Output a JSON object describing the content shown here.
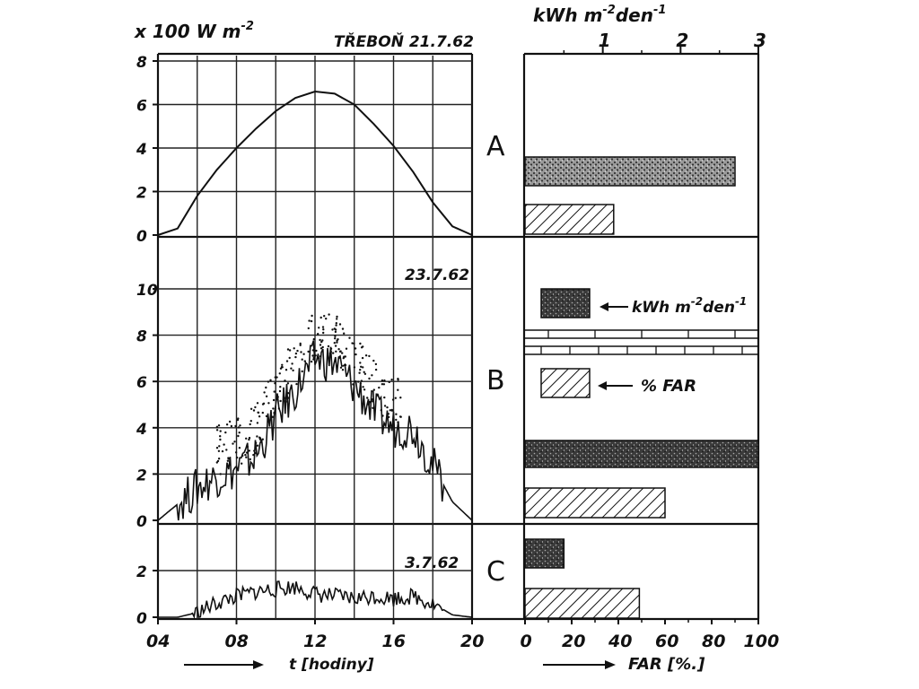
{
  "header": {
    "y_unit": "x 100 W m",
    "y_unit_sup": "-2",
    "location_date": "TŘEBOŇ  21.7.62",
    "energy_unit": "kWh m",
    "energy_unit_sup1": "-2",
    "energy_unit_mid": "den",
    "energy_unit_sup2": "-1"
  },
  "x_axis": {
    "label": "t  [hodiny]",
    "ticks": [
      "04",
      "08",
      "12",
      "16",
      "20"
    ]
  },
  "bar_axis": {
    "label": "FAR  [%.]",
    "ticks": [
      "0",
      "20",
      "40",
      "60",
      "80",
      "100"
    ],
    "top_ticks": [
      "1",
      "2",
      "3"
    ]
  },
  "legend": {
    "energy_label": "kWh m",
    "energy_sup1": "-2",
    "energy_mid": "den",
    "energy_sup2": "-1",
    "far_label": "% FAR"
  },
  "colors": {
    "ink": "#111111",
    "paper": "#ffffff"
  },
  "chart_data": [
    {
      "type": "line",
      "panel": "A",
      "date": "21.7.62",
      "x": [
        4,
        5,
        6,
        7,
        8,
        9,
        10,
        11,
        12,
        13,
        14,
        15,
        16,
        17,
        18,
        19,
        20
      ],
      "y": [
        0,
        0.3,
        1.8,
        3.0,
        4.0,
        4.9,
        5.7,
        6.3,
        6.6,
        6.5,
        6.0,
        5.1,
        4.1,
        2.9,
        1.5,
        0.4,
        0
      ],
      "yticks": [
        "0",
        "2",
        "4",
        "6",
        "8"
      ],
      "ylim": [
        0,
        8
      ],
      "xlim": [
        4,
        20
      ],
      "energy_kwh": 2.7,
      "far_percent": 38
    },
    {
      "type": "line",
      "panel": "B",
      "date": "23.7.62",
      "x": [
        4,
        5,
        6,
        7,
        8,
        9,
        10,
        11,
        12,
        13,
        14,
        15,
        16,
        17,
        18,
        19,
        20
      ],
      "y": [
        0,
        0.7,
        1.4,
        1.9,
        2.2,
        2.8,
        4.5,
        5.6,
        7.0,
        6.8,
        5.8,
        4.7,
        4.0,
        4.0,
        2.4,
        0.8,
        0
      ],
      "yticks": [
        "0",
        "2",
        "4",
        "6",
        "8",
        "10"
      ],
      "ylim": [
        0,
        10
      ],
      "xlim": [
        4,
        20
      ],
      "energy_kwh": 3.0,
      "far_percent": 60
    },
    {
      "type": "line",
      "panel": "C",
      "date": "3.7.62",
      "x": [
        4,
        5,
        6,
        7,
        8,
        9,
        10,
        11,
        12,
        13,
        14,
        15,
        16,
        17,
        18,
        19,
        20
      ],
      "y": [
        0,
        0,
        0.2,
        0.6,
        0.9,
        1.1,
        1.2,
        1.3,
        1.0,
        0.9,
        0.8,
        0.9,
        0.8,
        0.9,
        0.6,
        0.1,
        0
      ],
      "yticks": [
        "0",
        "2"
      ],
      "ylim": [
        0,
        3
      ],
      "xlim": [
        4,
        20
      ],
      "energy_kwh": 0.5,
      "far_percent": 49
    }
  ]
}
